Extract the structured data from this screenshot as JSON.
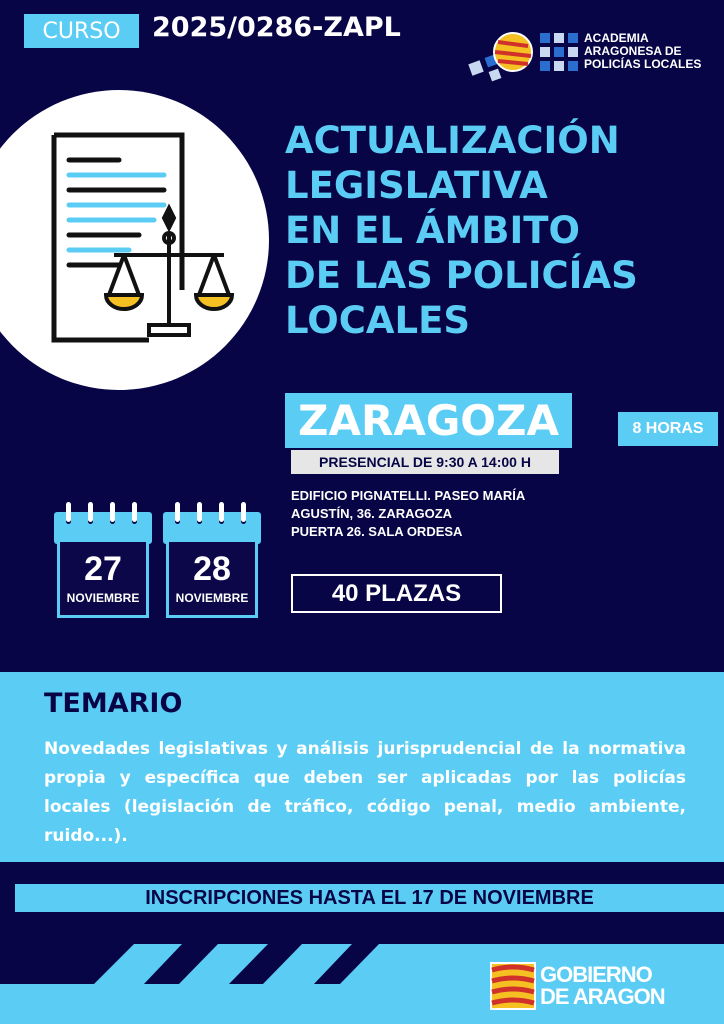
{
  "header": {
    "badge": "CURSO",
    "course_code": "2025/0286-ZAPL"
  },
  "logo_academia": {
    "lines": [
      "ACADEMIA",
      "ARAGONESA DE",
      "POLICÍAS LOCALES"
    ]
  },
  "title_lines": [
    "ACTUALIZACIÓN",
    "LEGISLATIVA",
    "EN EL ÁMBITO",
    "DE LAS POLICÍAS",
    "LOCALES"
  ],
  "location": {
    "city": "ZARAGOZA",
    "schedule": "PRESENCIAL DE 9:30 A 14:00 H",
    "hours": "8 HORAS",
    "address_lines": [
      "EDIFICIO PIGNATELLI. PASEO MARÍA",
      "AGUSTÍN, 36. ZARAGOZA",
      "PUERTA 26. SALA ORDESA"
    ],
    "seats": "40 PLAZAS"
  },
  "dates": [
    {
      "day": "27",
      "month": "NOVIEMBRE"
    },
    {
      "day": "28",
      "month": "NOVIEMBRE"
    }
  ],
  "temario": {
    "heading": "TEMARIO",
    "text": "Novedades legislativas y análisis jurisprudencial de la normativa propia y específica que deben ser aplicadas por las policías locales (legislación de tráfico, código penal, medio ambiente, ruido...)."
  },
  "inscripciones": "INSCRIPCIONES HASTA EL 17 DE NOVIEMBRE",
  "logo_gobierno": {
    "lines": [
      "GOBIERNO",
      "DE ARAGON"
    ]
  },
  "colors": {
    "navy": "#070545",
    "light_blue": "#5bcdf5",
    "yellow": "#f5c022",
    "red": "#d0322b"
  }
}
